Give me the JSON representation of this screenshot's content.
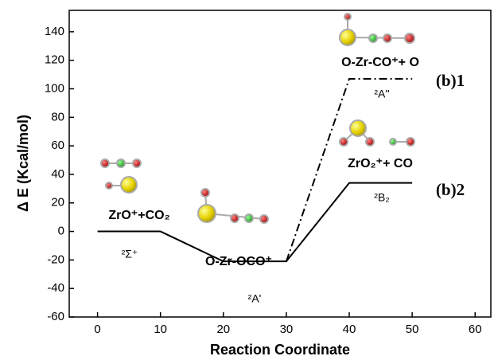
{
  "chart_data": {
    "type": "line",
    "xlabel": "Reaction Coordinate",
    "ylabel": "Δ E (Kcal/mol)",
    "xlim": [
      -4.5,
      62.5
    ],
    "ylim": [
      -60,
      155
    ],
    "xticks": [
      0,
      10,
      20,
      30,
      40,
      50,
      60
    ],
    "yticks": [
      -60,
      -40,
      -20,
      0,
      20,
      40,
      60,
      80,
      100,
      120,
      140
    ],
    "series": [
      {
        "x": [
          0,
          10,
          20,
          30,
          40,
          50
        ],
        "values": [
          0,
          0,
          -21,
          -21,
          34,
          34
        ],
        "color": "#000000",
        "style": "solid"
      },
      {
        "x": [
          30,
          40,
          50
        ],
        "values": [
          -21,
          107,
          107
        ],
        "color": "#000000",
        "style": "dashdot"
      }
    ],
    "annotations": [
      "ZrO⁺+CO₂",
      "²Σ⁺",
      "O-Zr-OCO⁺",
      "²A'",
      "O-Zr-CO⁺+ O",
      "²A''",
      "ZrO₂⁺+ CO",
      "²B₂",
      "(b)1",
      "(b)2"
    ]
  }
}
